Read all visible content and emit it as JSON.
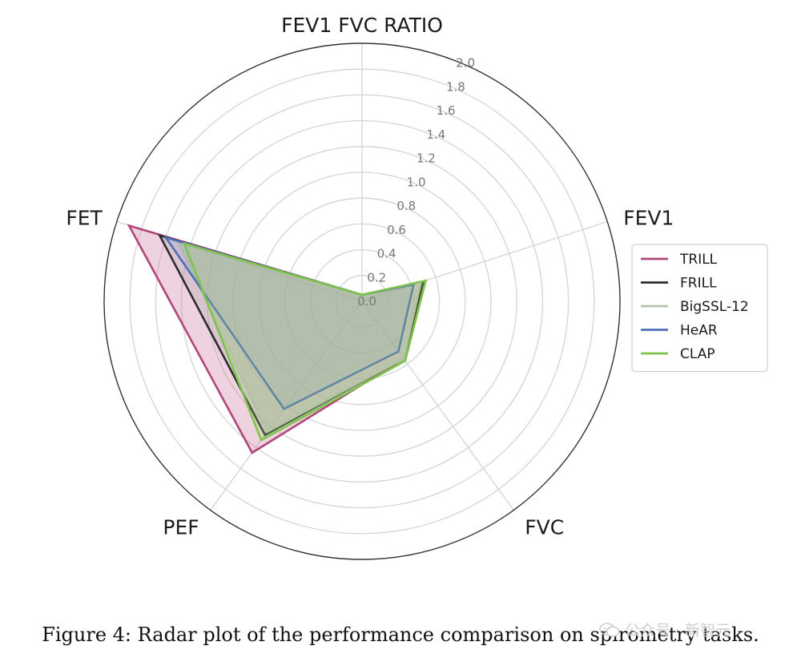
{
  "chart_data": {
    "type": "radar",
    "axes": [
      "FEV1 FVC RATIO",
      "FEV1",
      "FVC",
      "PEF",
      "FET"
    ],
    "rlim": [
      0,
      2.0
    ],
    "rticks": [
      "0.0",
      "0.2",
      "0.4",
      "0.6",
      "0.8",
      "1.0",
      "1.2",
      "1.4",
      "1.6",
      "1.8",
      "2.0"
    ],
    "grid": true,
    "legend_position": "right",
    "series": [
      {
        "name": "TRILL",
        "values": [
          0.05,
          0.5,
          0.55,
          1.45,
          1.9
        ],
        "color": "#b0467a",
        "fill": "#d27fa6",
        "fill_opacity": 0.35
      },
      {
        "name": "FRILL",
        "values": [
          0.05,
          0.5,
          0.55,
          1.28,
          1.65
        ],
        "color": "#2d2d2d",
        "fill": "#9a9a9a",
        "fill_opacity": 0.25
      },
      {
        "name": "BigSSL-12",
        "values": [
          0.05,
          0.48,
          0.55,
          1.25,
          1.5
        ],
        "color": "#b4c2b0",
        "fill": "#a8bca4",
        "fill_opacity": 0.35
      },
      {
        "name": "HeAR",
        "values": [
          0.05,
          0.42,
          0.48,
          1.03,
          1.6
        ],
        "color": "#4d6fb6",
        "fill": "#6f8cc7",
        "fill_opacity": 0.15
      },
      {
        "name": "CLAP",
        "values": [
          0.05,
          0.52,
          0.57,
          1.33,
          1.45
        ],
        "color": "#7ec34a",
        "fill": "#9bcf6e",
        "fill_opacity": 0.25
      }
    ]
  },
  "caption": "Figure 4: Radar plot of the performance comparison on spirometry tasks.",
  "watermark": "公众号 · 新智元"
}
